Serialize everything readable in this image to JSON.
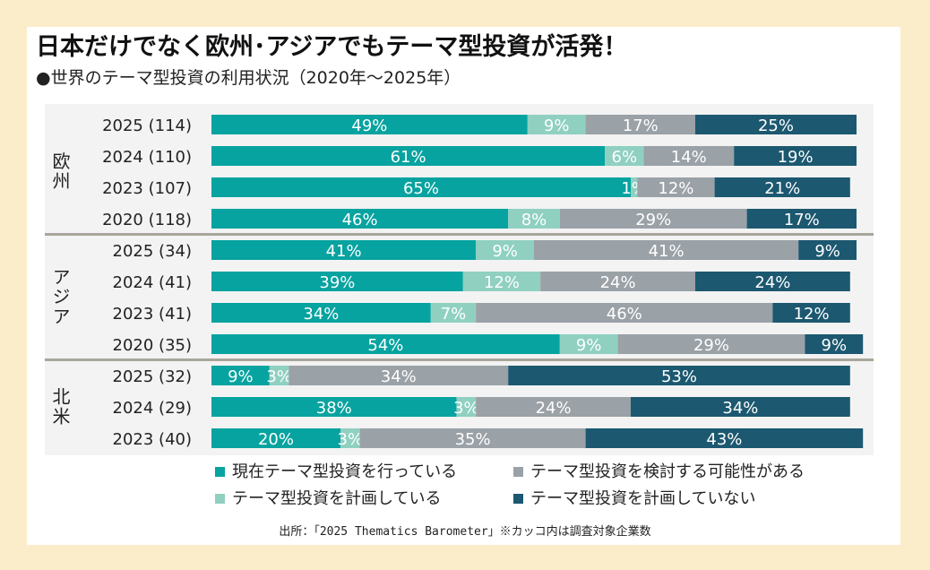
{
  "title": "日本だけでなく欧州･アジアでもテーマ型投資が活発！",
  "subtitle": "●世界のテーマ型投資の利用状況（2020年～2025年）",
  "source": "出所：「2025 Thematics Barometer」※カッコ内は調査対象企業数",
  "colors": {
    "current": "#07a3a0",
    "planning": "#8fd0c1",
    "considering": "#9aa1a7",
    "not_planning": "#1c5870",
    "divider": "#a8a59a",
    "page_bg": "#fbedc9"
  },
  "chart_data": {
    "type": "bar",
    "orientation": "horizontal",
    "stacked": true,
    "unit": "%",
    "xlim": [
      0,
      100
    ],
    "legend": "bottom",
    "grid": false,
    "series": [
      {
        "key": "current",
        "name": "現在テーマ型投資を行っている"
      },
      {
        "key": "planning",
        "name": "テーマ型投資を計画している"
      },
      {
        "key": "considering",
        "name": "テーマ型投資を検討する可能性がある"
      },
      {
        "key": "not_planning",
        "name": "テーマ型投資を計画していない"
      }
    ],
    "groups": [
      {
        "region": "欧州",
        "rows": [
          {
            "label": "2025 (114)",
            "current": 49,
            "planning": 9,
            "considering": 17,
            "not_planning": 25
          },
          {
            "label": "2024 (110)",
            "current": 61,
            "planning": 6,
            "considering": 14,
            "not_planning": 19
          },
          {
            "label": "2023 (107)",
            "current": 65,
            "planning": 1,
            "considering": 12,
            "not_planning": 21
          },
          {
            "label": "2020 (118)",
            "current": 46,
            "planning": 8,
            "considering": 29,
            "not_planning": 17
          }
        ]
      },
      {
        "region": "アジア",
        "rows": [
          {
            "label": "2025 (34)",
            "current": 41,
            "planning": 9,
            "considering": 41,
            "not_planning": 9
          },
          {
            "label": "2024 (41)",
            "current": 39,
            "planning": 12,
            "considering": 24,
            "not_planning": 24
          },
          {
            "label": "2023 (41)",
            "current": 34,
            "planning": 7,
            "considering": 46,
            "not_planning": 12
          },
          {
            "label": "2020 (35)",
            "current": 54,
            "planning": 9,
            "considering": 29,
            "not_planning": 9
          }
        ]
      },
      {
        "region": "北米",
        "rows": [
          {
            "label": "2025 (32)",
            "current": 9,
            "planning": 3,
            "considering": 34,
            "not_planning": 53
          },
          {
            "label": "2024 (29)",
            "current": 38,
            "planning": 3,
            "considering": 24,
            "not_planning": 34
          },
          {
            "label": "2023 (40)",
            "current": 20,
            "planning": 3,
            "considering": 35,
            "not_planning": 43
          }
        ]
      }
    ]
  }
}
